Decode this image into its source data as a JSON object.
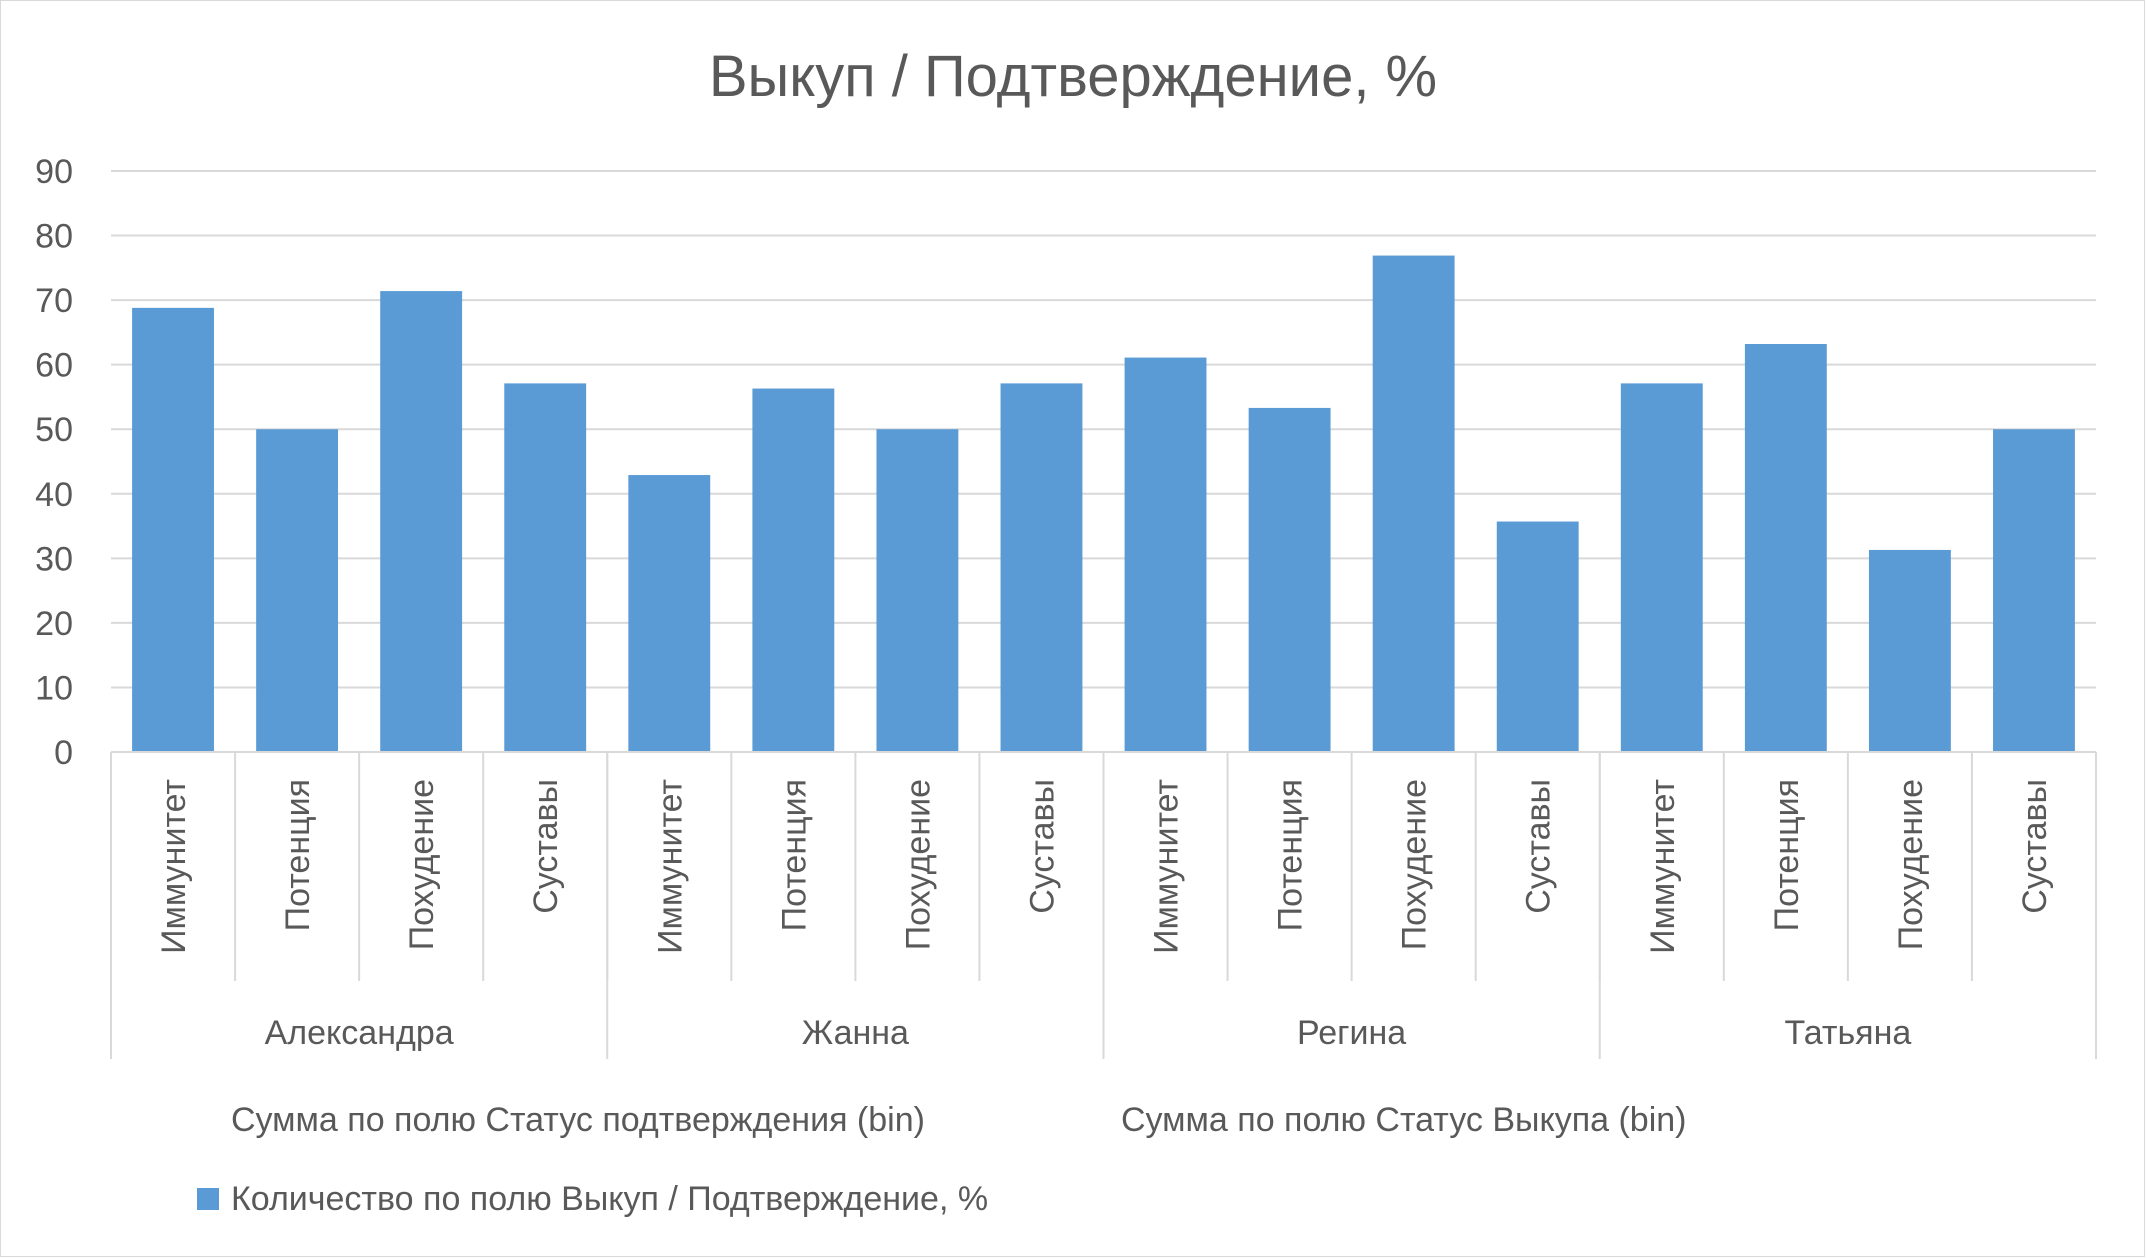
{
  "chart_data": {
    "type": "bar",
    "title": "Выкуп / Подтверждение, %",
    "ylim": [
      0,
      90
    ],
    "yticks": [
      0,
      10,
      20,
      30,
      40,
      50,
      60,
      70,
      80,
      90
    ],
    "grid": true,
    "groups": [
      {
        "name": "Александра",
        "categories": [
          "Иммунитет",
          "Потенция",
          "Похудение",
          "Суставы"
        ],
        "values": [
          68.8,
          50.0,
          71.4,
          57.1
        ]
      },
      {
        "name": "Жанна",
        "categories": [
          "Иммунитет",
          "Потенция",
          "Похудение",
          "Суставы"
        ],
        "values": [
          42.9,
          56.3,
          50.0,
          57.1
        ]
      },
      {
        "name": "Регина",
        "categories": [
          "Иммунитет",
          "Потенция",
          "Похудение",
          "Суставы"
        ],
        "values": [
          61.1,
          53.3,
          76.9,
          35.7
        ]
      },
      {
        "name": "Татьяна",
        "categories": [
          "Иммунитет",
          "Потенция",
          "Похудение",
          "Суставы"
        ],
        "values": [
          57.1,
          63.2,
          31.3,
          50.0
        ]
      }
    ],
    "filter_labels": [
      "Сумма по полю Статус подтверждения (bin)",
      "Сумма по полю Статус Выкупа (bin)"
    ],
    "series": [
      {
        "name": "Количество по полю Выкуп / Подтверждение, %",
        "color": "#5b9bd5"
      }
    ],
    "legend_position": "bottom-left"
  }
}
